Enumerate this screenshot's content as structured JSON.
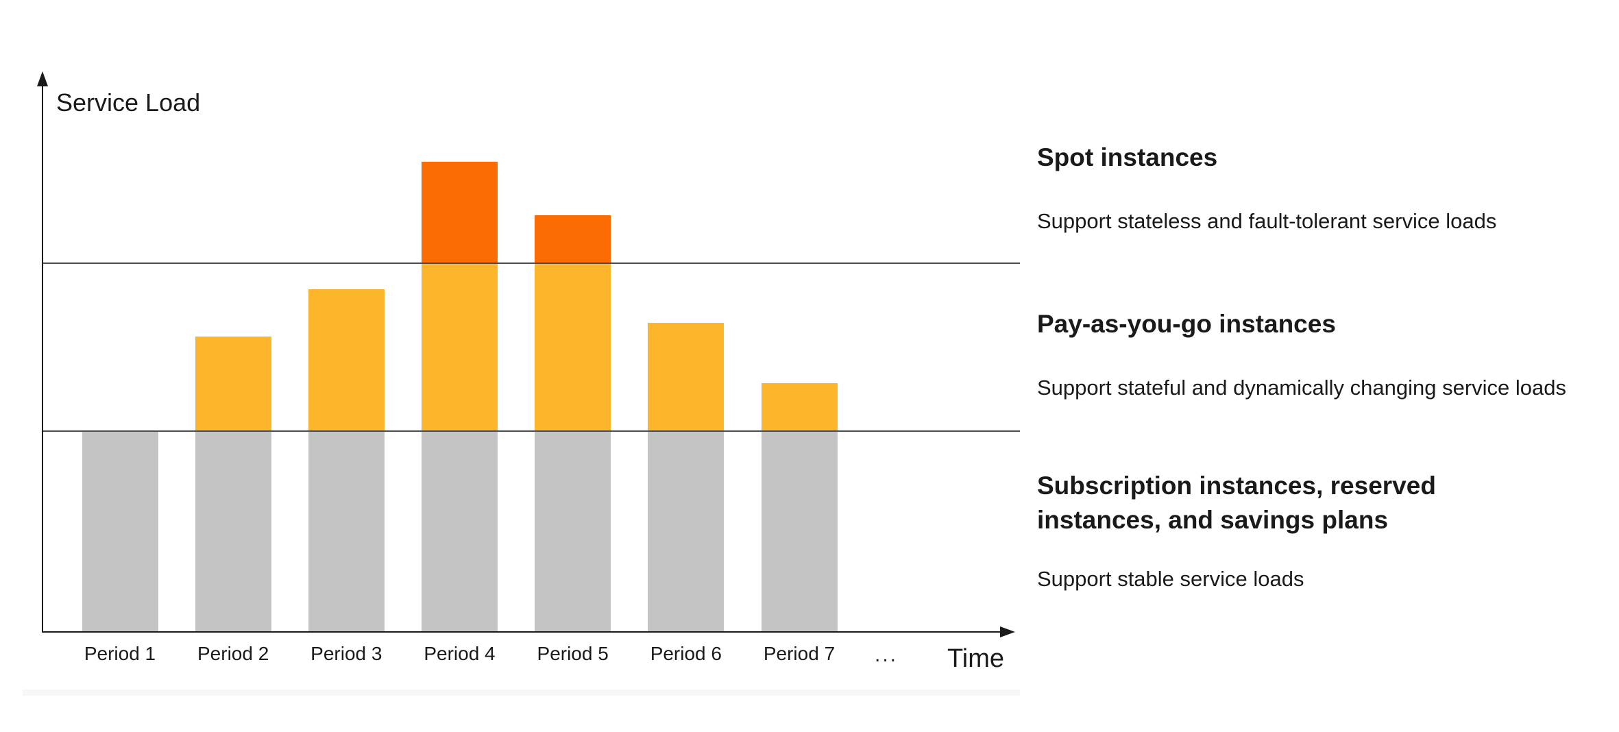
{
  "page": {
    "background": "#ffffff"
  },
  "chart": {
    "y_axis_label": "Service Load",
    "x_axis_label": "Time",
    "ellipsis_tick": "...",
    "colors": {
      "spot_orange": "#fb6c05",
      "payg_yellow": "#fdb52b",
      "subscription_gray": "#c4c4c4",
      "reference_line": "#4b4b4e",
      "axis": "#1a1a1a",
      "text": "#1a1a1a",
      "footer_strip": "#f7f7f8"
    }
  },
  "chart_data": {
    "type": "bar",
    "stacked": true,
    "title": "",
    "ylabel": "Service Load",
    "xlabel": "Time",
    "y_axis_numeric": false,
    "grid": false,
    "legend_position": "right",
    "categories": [
      "Period 1",
      "Period 2",
      "Period 3",
      "Period 4",
      "Period 5",
      "Period 6",
      "Period 7"
    ],
    "x_axis_extra_tick": "...",
    "total_load_units": [
      3.0,
      4.4,
      5.1,
      7.0,
      6.2,
      4.6,
      3.7
    ],
    "ylim": [
      0,
      8
    ],
    "series": [
      {
        "key": "subscription",
        "name": "Subscription instances, reserved instances, and savings plans",
        "color": "#c4c4c4",
        "values": [
          3.0,
          3.0,
          3.0,
          3.0,
          3.0,
          3.0,
          3.0
        ]
      },
      {
        "key": "payg",
        "name": "Pay-as-you-go instances",
        "color": "#fdb52b",
        "values": [
          0,
          1.4,
          2.1,
          2.5,
          2.5,
          1.6,
          0.7
        ]
      },
      {
        "key": "spot",
        "name": "Spot instances",
        "color": "#fb6c05",
        "values": [
          0,
          0,
          0,
          1.5,
          0.7,
          0,
          0
        ]
      }
    ],
    "reference_lines": {
      "values": [
        3.0,
        5.5
      ]
    }
  },
  "annotations": [
    {
      "title": "Spot instances",
      "description": "Support stateless and fault-tolerant service loads"
    },
    {
      "title": "Pay-as-you-go instances",
      "description": "Support stateful and dynamically changing service loads"
    },
    {
      "title": "Subscription instances, reserved instances, and savings plans",
      "description": "Support stable service loads"
    }
  ]
}
